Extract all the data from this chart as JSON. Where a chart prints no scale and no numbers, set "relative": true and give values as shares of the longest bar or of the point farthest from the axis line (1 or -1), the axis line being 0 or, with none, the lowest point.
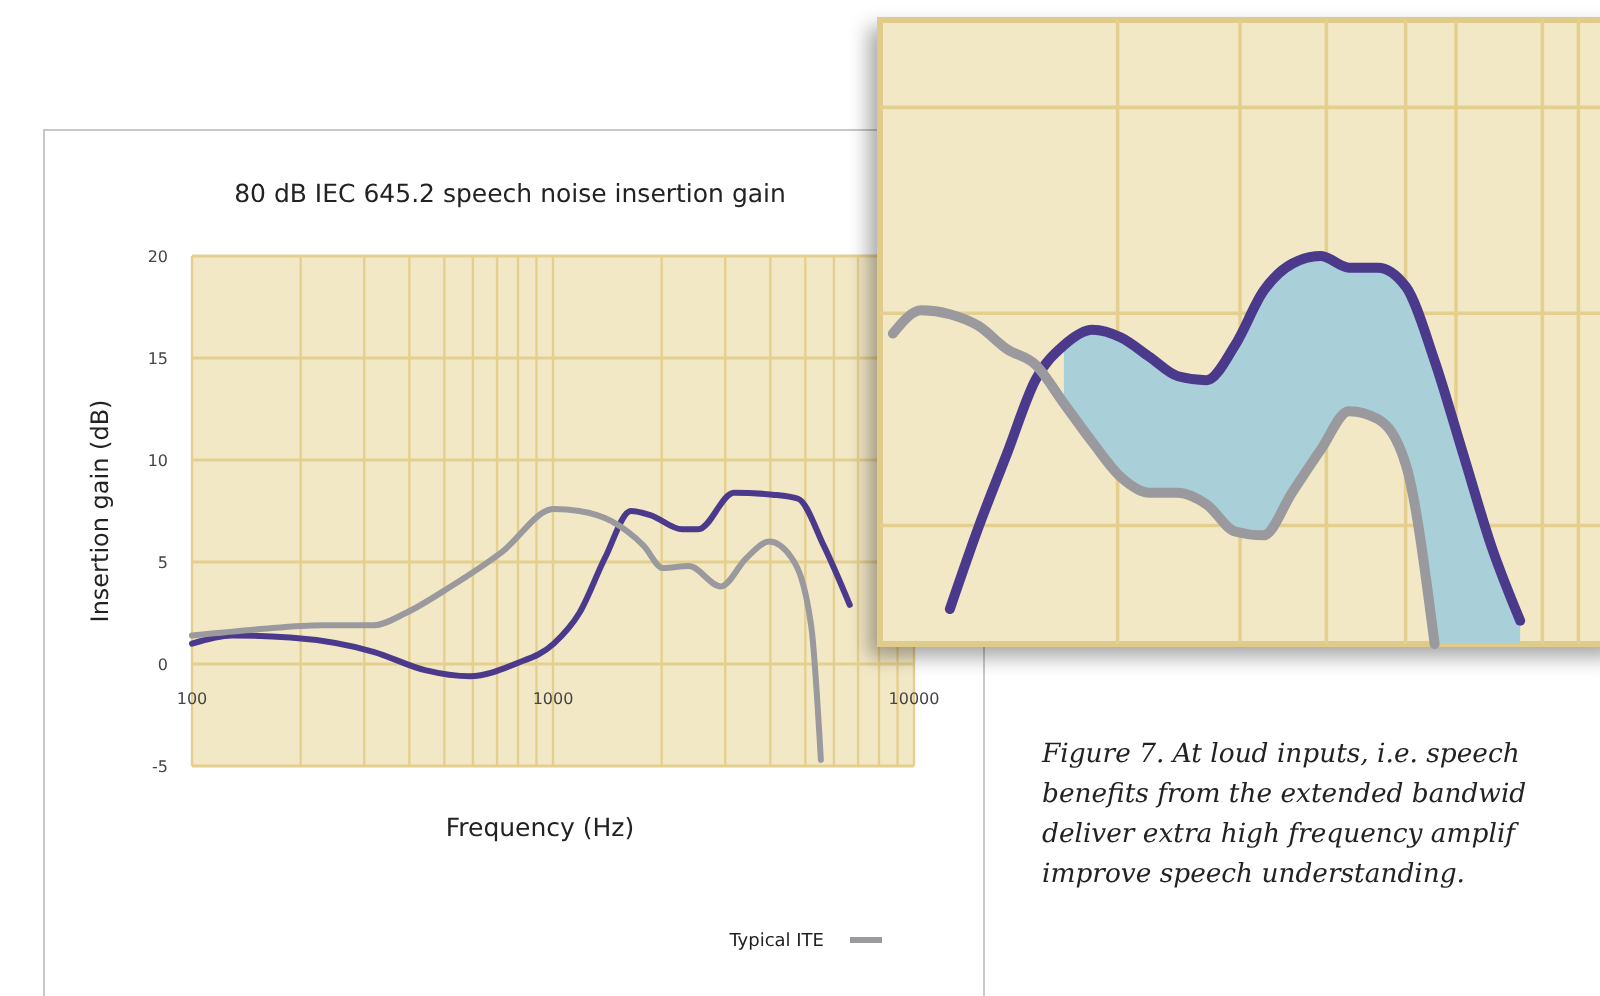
{
  "chart_data": [
    {
      "type": "line",
      "title": "80 dB IEC 645.2 speech noise insertion gain",
      "xlabel": "Frequency (Hz)",
      "ylabel": "Insertion gain (dB)",
      "log": "x",
      "xlim": [
        100,
        10000
      ],
      "ylim": [
        -5,
        20
      ],
      "xticks": [
        100,
        {
          "value": 200,
          "label": null
        },
        {
          "value": 300,
          "label": null
        },
        {
          "value": 400,
          "label": null
        },
        {
          "value": 500,
          "label": null
        },
        {
          "value": 600,
          "label": null
        },
        {
          "value": 700,
          "label": null
        },
        {
          "value": 800,
          "label": null
        },
        {
          "value": 900,
          "label": null
        },
        1000,
        {
          "value": 2000,
          "label": null
        },
        {
          "value": 3000,
          "label": null
        },
        {
          "value": 4000,
          "label": null
        },
        {
          "value": 5000,
          "label": null
        },
        {
          "value": 6000,
          "label": null
        },
        {
          "value": 7000,
          "label": null
        },
        {
          "value": 8000,
          "label": null
        },
        {
          "value": 9000,
          "label": null
        },
        10000
      ],
      "yticks": [
        -5,
        0,
        5,
        10,
        15,
        20
      ],
      "grid": true,
      "legend": "bottom right",
      "series": [
        {
          "color": "#4b3a8c",
          "x": [
            100,
            129,
            187,
            318,
            442,
            589,
            785,
            1005,
            1183,
            1393,
            1643,
            1859,
            2280,
            2527,
            3171,
            4055,
            4775,
            5623,
            6637
          ],
          "values": [
            1.0,
            1.4,
            1.3,
            0.6,
            -0.3,
            -0.6,
            0.0,
            1.0,
            2.5,
            5.2,
            7.5,
            7.3,
            6.6,
            6.6,
            8.4,
            8.3,
            8.1,
            5.8,
            2.9
          ]
        },
        {
          "name": "Typical ITE",
          "color": "#9a9a9e",
          "x": [
            100,
            152,
            229,
            318,
            391,
            521,
            723,
            1005,
            1183,
            1452,
            1782,
            2018,
            2378,
            2917,
            3436,
            3971,
            4582,
            5188,
            5521
          ],
          "values": [
            1.4,
            1.7,
            1.9,
            1.9,
            2.5,
            3.8,
            5.5,
            7.6,
            7.5,
            7.0,
            5.8,
            4.7,
            4.8,
            3.8,
            5.2,
            6.0,
            5.2,
            1.9,
            -4.7
          ]
        }
      ],
      "annotations": [
        "Figure 7. At loud inputs, i.e. speech",
        "benefits from the extended bandwid",
        "deliver extra high frequency amplif",
        "improve speech understanding."
      ]
    },
    {
      "type": "line",
      "relative": true,
      "grid": true,
      "categories": [
        null,
        null,
        null,
        null,
        null,
        null,
        null,
        null,
        null,
        null,
        null,
        null,
        null,
        null,
        null,
        null,
        null,
        null,
        null,
        null,
        null,
        null,
        null,
        null,
        null
      ],
      "series": [
        {
          "color": "#4b3a8c",
          "values": [
            null,
            null,
            0.09,
            0.3,
            0.49,
            0.68,
            0.77,
            0.81,
            0.79,
            0.74,
            0.69,
            0.68,
            0.77,
            0.91,
            0.98,
            1,
            0.97,
            0.97,
            0.92,
            0.73,
            0.49,
            0.25,
            0.06,
            null,
            null
          ],
          "upper": [
            null,
            null,
            null,
            null,
            null,
            null,
            0.77,
            0.81,
            0.79,
            0.74,
            0.69,
            0.68,
            0.77,
            0.91,
            0.98,
            1,
            0.97,
            0.97,
            0.92,
            0.73,
            0.49,
            0.25,
            0.06,
            null,
            null
          ],
          "lower": [
            null,
            null,
            null,
            null,
            null,
            null,
            0.62,
            0.52,
            0.43,
            0.39,
            0.39,
            0.36,
            0.29,
            0.28,
            0.39,
            0.5,
            0.6,
            0.58,
            0.46,
            0,
            0,
            0,
            0,
            null,
            null
          ]
        },
        {
          "color": "#9a9a9e",
          "values": [
            0.8,
            0.86,
            0.85,
            0.82,
            0.76,
            0.72,
            0.62,
            0.52,
            0.43,
            0.39,
            0.39,
            0.36,
            0.29,
            0.28,
            0.39,
            0.5,
            0.6,
            0.58,
            0.46,
            0,
            null,
            null,
            null,
            null,
            null
          ]
        }
      ]
    }
  ]
}
